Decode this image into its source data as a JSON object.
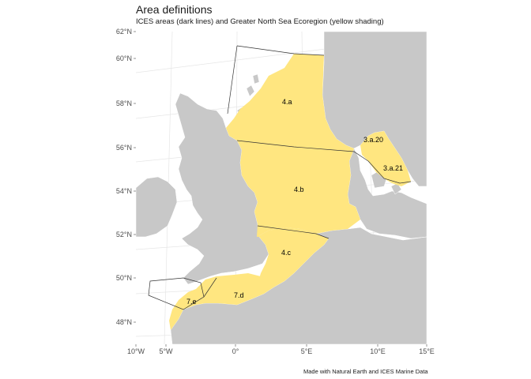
{
  "title": "Area definitions",
  "subtitle": "ICES areas (dark lines) and Greater North Sea Ecoregion (yellow shading)",
  "caption": "Made with Natural Earth and ICES Marine Data",
  "colors": {
    "land": "#c8c8c8",
    "ecoregion": "#ffe680",
    "area_lines": "#333333",
    "graticule": "#e6e6e6",
    "panel": "#ffffff"
  },
  "axes": {
    "y_ticks": [
      "62°N",
      "60°N",
      "58°N",
      "56°N",
      "54°N",
      "52°N",
      "50°N",
      "48°N"
    ],
    "x_ticks": [
      "10°W",
      "5°W",
      "0°",
      "5°E",
      "10°E",
      "15°E"
    ]
  },
  "areas": [
    "4.a",
    "3.a.20",
    "3.a.21",
    "4.b",
    "4.c",
    "7.d",
    "7.e"
  ]
}
